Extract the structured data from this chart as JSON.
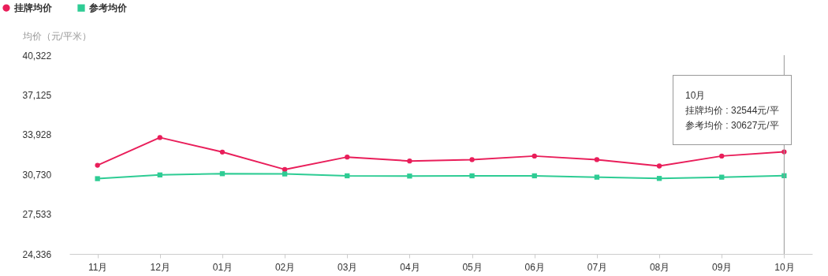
{
  "chart_data": {
    "type": "line",
    "ylabel": "均价（元/平米）",
    "categories": [
      "11月",
      "12月",
      "01月",
      "02月",
      "03月",
      "04月",
      "05月",
      "06月",
      "07月",
      "08月",
      "09月",
      "10月"
    ],
    "series": [
      {
        "name": "挂牌均价",
        "color": "#e91e5a",
        "marker": "circle",
        "values": [
          31470,
          33700,
          32530,
          31130,
          32130,
          31810,
          31920,
          32210,
          31920,
          31410,
          32210,
          32544
        ]
      },
      {
        "name": "参考均价",
        "color": "#2ecc94",
        "marker": "square",
        "values": [
          30390,
          30690,
          30790,
          30770,
          30620,
          30600,
          30620,
          30620,
          30510,
          30410,
          30510,
          30627
        ]
      }
    ],
    "ylim": [
      24336,
      40322
    ],
    "yticks": [
      {
        "value": 24336,
        "label": "24,336"
      },
      {
        "value": 27533,
        "label": "27,533"
      },
      {
        "value": 30730,
        "label": "30,730"
      },
      {
        "value": 33928,
        "label": "33,928"
      },
      {
        "value": 37125,
        "label": "37,125"
      },
      {
        "value": 40322,
        "label": "40,322"
      }
    ],
    "ref_lines": [
      {
        "axis": "x",
        "value": "10月",
        "color": "#999999"
      }
    ],
    "annotations": [
      "10月",
      "挂牌均价 : 32544元/平",
      "参考均价 : 30627元/平"
    ],
    "grid": false,
    "legend": "top left",
    "line_style": "solid"
  }
}
